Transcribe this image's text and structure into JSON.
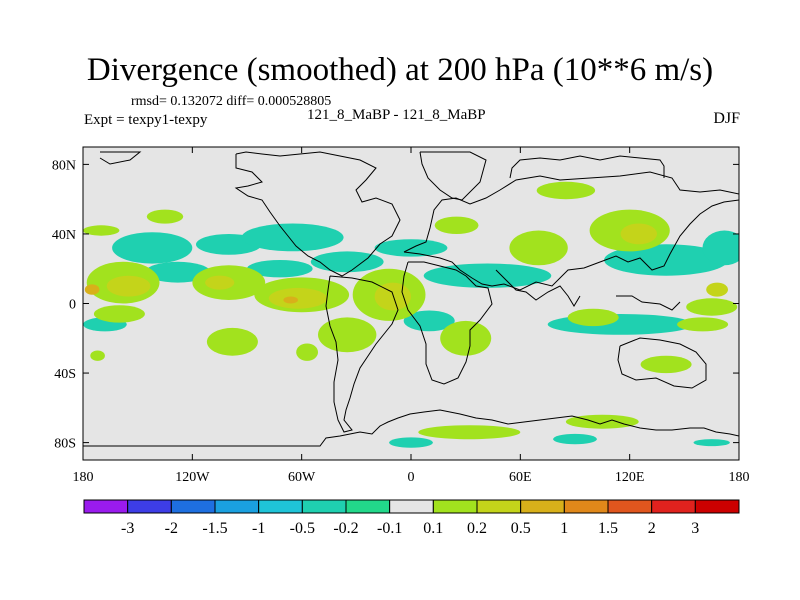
{
  "title": "Divergence (smoothed) at 200 hPa (10**6 m/s)",
  "stats": "rmsd= 0.132072 diff= 0.000528805",
  "subtitle": "121_8_MaBP - 121_8_MaBP",
  "expt": "Expt = texpy1-texpy",
  "season": "DJF",
  "chart_data": {
    "type": "heatmap",
    "title": "Divergence (smoothed) at 200 hPa (10**6 m/s)",
    "xlim": [
      -180,
      180
    ],
    "ylim": [
      -90,
      90
    ],
    "x_ticks": [
      {
        "value": -180,
        "label": "180"
      },
      {
        "value": -120,
        "label": "120W"
      },
      {
        "value": -60,
        "label": "60W"
      },
      {
        "value": 0,
        "label": "0"
      },
      {
        "value": 60,
        "label": "60E"
      },
      {
        "value": 120,
        "label": "120E"
      },
      {
        "value": 180,
        "label": "180"
      }
    ],
    "y_ticks": [
      {
        "value": 80,
        "label": "80N"
      },
      {
        "value": 40,
        "label": "40N"
      },
      {
        "value": 0,
        "label": "0"
      },
      {
        "value": -40,
        "label": "40S"
      },
      {
        "value": -80,
        "label": "80S"
      }
    ],
    "background_color": "#e5e5e5",
    "colorbar": {
      "labels": [
        "-3",
        "-2",
        "-1.5",
        "-1",
        "-0.5",
        "-0.2",
        "-0.1",
        "0.1",
        "0.2",
        "0.5",
        "1",
        "1.5",
        "2",
        "3"
      ],
      "colors": [
        "#9a1bee",
        "#3d3de6",
        "#1e6fe0",
        "#1aa0e0",
        "#1fc4d8",
        "#1fd0b0",
        "#22d88a",
        "#e5e5e5",
        "#a2e21e",
        "#c4d41a",
        "#d8b01a",
        "#e0881a",
        "#e0561e",
        "#e0221e",
        "#cc0000"
      ]
    },
    "fields": [
      {
        "level": "-0.1",
        "lon": -142,
        "lat": 32,
        "rlon": 22,
        "rlat": 9
      },
      {
        "level": "-0.1",
        "lon": -100,
        "lat": 34,
        "rlon": 18,
        "rlat": 6
      },
      {
        "level": "-0.1",
        "lon": -65,
        "lat": 38,
        "rlon": 28,
        "rlat": 8
      },
      {
        "level": "-0.1",
        "lon": -128,
        "lat": 18,
        "rlon": 18,
        "rlat": 6
      },
      {
        "level": "-0.1",
        "lon": -72,
        "lat": 20,
        "rlon": 18,
        "rlat": 5
      },
      {
        "level": "-0.1",
        "lon": -35,
        "lat": 24,
        "rlon": 20,
        "rlat": 6
      },
      {
        "level": "-0.1",
        "lon": 0,
        "lat": 32,
        "rlon": 20,
        "rlat": 5
      },
      {
        "level": "-0.1",
        "lon": 42,
        "lat": 16,
        "rlon": 35,
        "rlat": 7
      },
      {
        "level": "-0.1",
        "lon": 140,
        "lat": 25,
        "rlon": 34,
        "rlat": 9
      },
      {
        "level": "-0.1",
        "lon": 172,
        "lat": 32,
        "rlon": 12,
        "rlat": 10
      },
      {
        "level": "-0.1",
        "lon": 10,
        "lat": -10,
        "rlon": 14,
        "rlat": 6
      },
      {
        "level": "-0.1",
        "lon": 115,
        "lat": -12,
        "rlon": 40,
        "rlat": 6
      },
      {
        "level": "-0.1",
        "lon": -168,
        "lat": -12,
        "rlon": 12,
        "rlat": 4
      },
      {
        "level": "-0.1",
        "lon": 0,
        "lat": -80,
        "rlon": 12,
        "rlat": 3
      },
      {
        "level": "-0.1",
        "lon": 90,
        "lat": -78,
        "rlon": 12,
        "rlat": 3
      },
      {
        "level": "-0.1",
        "lon": 165,
        "lat": -80,
        "rlon": 10,
        "rlat": 2
      },
      {
        "level": "0.2",
        "lon": -158,
        "lat": 12,
        "rlon": 20,
        "rlat": 12
      },
      {
        "level": "0.2",
        "lon": -100,
        "lat": 12,
        "rlon": 20,
        "rlat": 10
      },
      {
        "level": "0.2",
        "lon": -60,
        "lat": 5,
        "rlon": 26,
        "rlat": 10
      },
      {
        "level": "0.2",
        "lon": -12,
        "lat": 5,
        "rlon": 20,
        "rlat": 15
      },
      {
        "level": "0.2",
        "lon": 25,
        "lat": 45,
        "rlon": 12,
        "rlat": 5
      },
      {
        "level": "0.2",
        "lon": 70,
        "lat": 32,
        "rlon": 16,
        "rlat": 10
      },
      {
        "level": "0.2",
        "lon": 120,
        "lat": 42,
        "rlon": 22,
        "rlat": 12
      },
      {
        "level": "0.2",
        "lon": 85,
        "lat": 65,
        "rlon": 16,
        "rlat": 5
      },
      {
        "level": "0.2",
        "lon": -135,
        "lat": 50,
        "rlon": 10,
        "rlat": 4
      },
      {
        "level": "0.2",
        "lon": -170,
        "lat": 42,
        "rlon": 10,
        "rlat": 3
      },
      {
        "level": "0.2",
        "lon": 100,
        "lat": -8,
        "rlon": 14,
        "rlat": 5
      },
      {
        "level": "0.2",
        "lon": 165,
        "lat": -2,
        "rlon": 14,
        "rlat": 5
      },
      {
        "level": "0.2",
        "lon": 30,
        "lat": -20,
        "rlon": 14,
        "rlat": 10
      },
      {
        "level": "0.2",
        "lon": -35,
        "lat": -18,
        "rlon": 16,
        "rlat": 10
      },
      {
        "level": "0.2",
        "lon": -98,
        "lat": -22,
        "rlon": 14,
        "rlat": 8
      },
      {
        "level": "0.2",
        "lon": -160,
        "lat": -6,
        "rlon": 14,
        "rlat": 5
      },
      {
        "level": "0.2",
        "lon": 140,
        "lat": -35,
        "rlon": 14,
        "rlat": 5
      },
      {
        "level": "0.2",
        "lon": 160,
        "lat": -12,
        "rlon": 14,
        "rlat": 4
      },
      {
        "level": "0.2",
        "lon": -57,
        "lat": -28,
        "rlon": 6,
        "rlat": 5
      },
      {
        "level": "0.2",
        "lon": -172,
        "lat": -30,
        "rlon": 4,
        "rlat": 3
      },
      {
        "level": "0.2",
        "lon": 105,
        "lat": -68,
        "rlon": 20,
        "rlat": 4
      },
      {
        "level": "0.2",
        "lon": 32,
        "lat": -74,
        "rlon": 28,
        "rlat": 4
      },
      {
        "level": "0.5",
        "lon": -155,
        "lat": 10,
        "rlon": 12,
        "rlat": 6
      },
      {
        "level": "0.5",
        "lon": -105,
        "lat": 12,
        "rlon": 8,
        "rlat": 4
      },
      {
        "level": "0.5",
        "lon": -62,
        "lat": 3,
        "rlon": 16,
        "rlat": 6
      },
      {
        "level": "0.5",
        "lon": -10,
        "lat": 4,
        "rlon": 10,
        "rlat": 8
      },
      {
        "level": "0.5",
        "lon": 125,
        "lat": 40,
        "rlon": 10,
        "rlat": 6
      },
      {
        "level": "0.5",
        "lon": 168,
        "lat": 8,
        "rlon": 6,
        "rlat": 4
      },
      {
        "level": "1",
        "lon": -175,
        "lat": 8,
        "rlon": 4,
        "rlat": 3
      },
      {
        "level": "1",
        "lon": -66,
        "lat": 2,
        "rlon": 4,
        "rlat": 2
      }
    ]
  }
}
